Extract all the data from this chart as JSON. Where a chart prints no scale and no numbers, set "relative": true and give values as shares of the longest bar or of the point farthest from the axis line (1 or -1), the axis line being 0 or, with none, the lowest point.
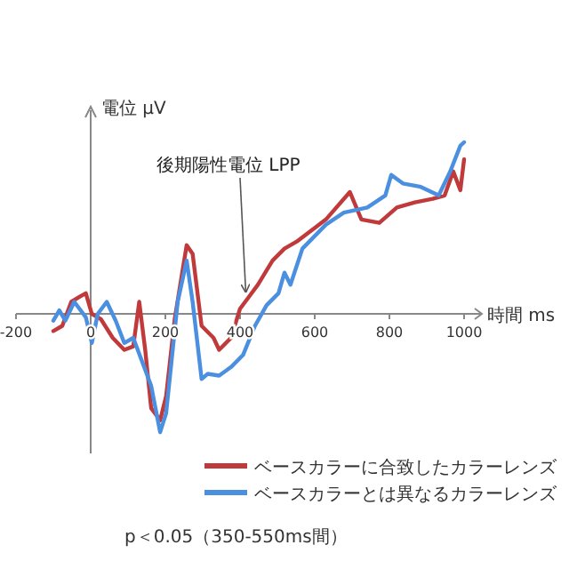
{
  "chart_data": {
    "type": "line",
    "relative": true,
    "xlabel": "時間 ms",
    "ylabel": "電位 μV",
    "xlim": [
      -200,
      1000
    ],
    "xticks": [
      -200,
      0,
      200,
      400,
      600,
      800,
      1000
    ],
    "legend": "bottom right",
    "series": [
      {
        "name": "ベースカラーに合致したカラーレンズ",
        "color": "#c0393b",
        "x": [
          -100,
          -76,
          -52,
          -29,
          -13,
          3,
          27,
          59,
          90,
          114,
          130,
          146,
          162,
          186,
          202,
          225,
          257,
          273,
          297,
          329,
          344,
          376,
          400,
          424,
          448,
          487,
          519,
          551,
          630,
          694,
          725,
          773,
          820,
          868,
          916,
          948,
          971,
          990,
          1000
        ],
        "values": [
          -0.1,
          -0.07,
          0.07,
          0.1,
          0.12,
          0,
          -0.03,
          -0.14,
          -0.21,
          -0.19,
          0.07,
          -0.21,
          -0.55,
          -0.62,
          -0.48,
          -0.03,
          0.4,
          0.35,
          -0.07,
          -0.14,
          -0.21,
          -0.14,
          0.03,
          0.1,
          0.17,
          0.31,
          0.38,
          0.42,
          0.55,
          0.71,
          0.55,
          0.53,
          0.62,
          0.65,
          0.67,
          0.69,
          0.83,
          0.72,
          0.9
        ]
      },
      {
        "name": "ベースカラーとは異なるカラーレンズ",
        "color": "#4a8fe0",
        "x": [
          -100,
          -84,
          -68,
          -44,
          -13,
          3,
          19,
          43,
          67,
          90,
          114,
          138,
          162,
          186,
          202,
          233,
          257,
          273,
          297,
          313,
          344,
          376,
          408,
          440,
          471,
          503,
          519,
          535,
          567,
          630,
          678,
          741,
          789,
          805,
          836,
          884,
          932,
          963,
          990,
          1000
        ],
        "values": [
          -0.04,
          0.02,
          -0.04,
          0.07,
          -0.02,
          -0.17,
          0,
          0.07,
          -0.04,
          -0.17,
          -0.14,
          -0.28,
          -0.42,
          -0.69,
          -0.58,
          0.07,
          0.31,
          0.07,
          -0.38,
          -0.35,
          -0.36,
          -0.31,
          -0.24,
          -0.07,
          0.05,
          0.12,
          0.24,
          0.17,
          0.38,
          0.52,
          0.59,
          0.62,
          0.69,
          0.81,
          0.76,
          0.74,
          0.69,
          0.83,
          0.98,
          1
        ]
      }
    ],
    "annotations": [
      {
        "text": "後期陽性電位 LPP",
        "x": 420,
        "y": 0.1
      },
      "p＜0.05（350-550ms間）"
    ]
  }
}
